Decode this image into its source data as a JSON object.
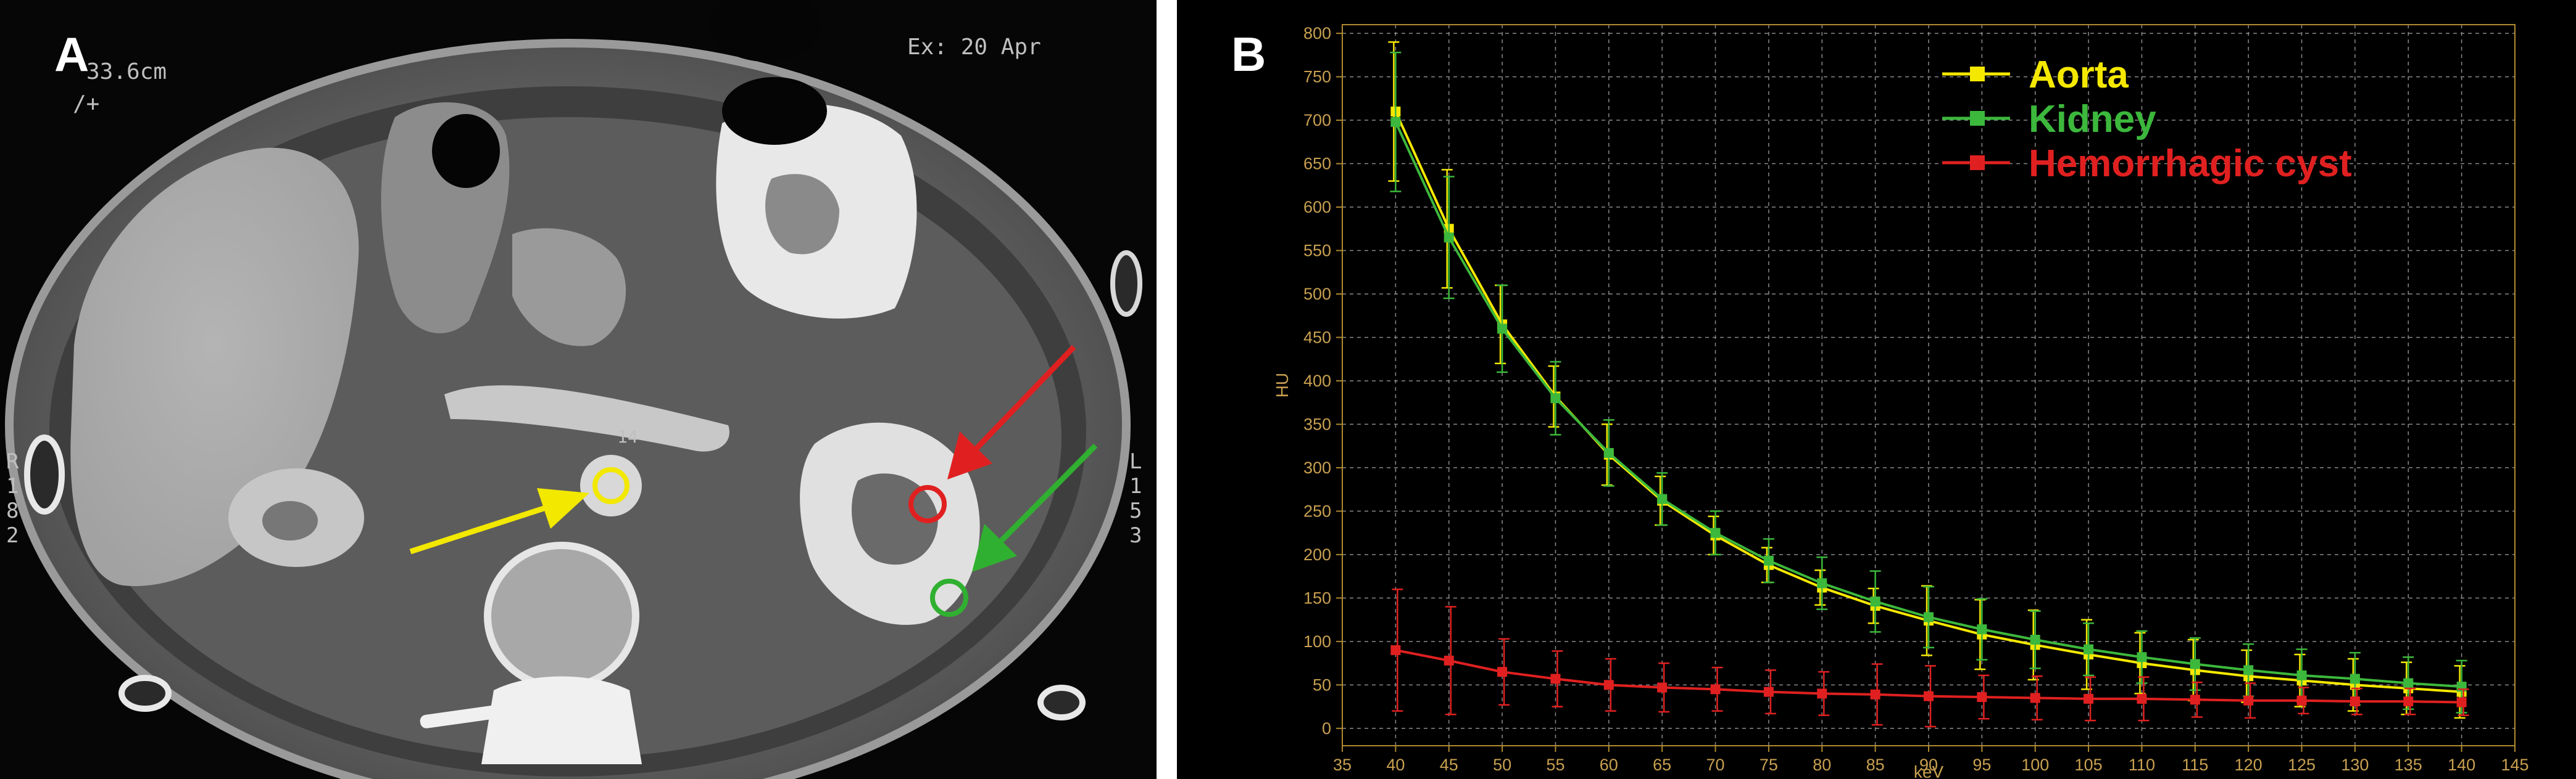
{
  "panel_a": {
    "label": "A",
    "top_left_lines": [
      "33.6cm",
      "/+"
    ],
    "top_right": "Ex: 20 Apr",
    "left_side_chars": [
      "R",
      "1",
      "8",
      "2"
    ],
    "right_side_chars": [
      "L",
      "1",
      "5",
      "3"
    ],
    "small_label": "14",
    "markers": [
      {
        "name": "aorta",
        "color": "#f2e800"
      },
      {
        "name": "hemorrhagic-cyst",
        "color": "#e02020"
      },
      {
        "name": "kidney",
        "color": "#30b030"
      }
    ]
  },
  "panel_b": {
    "label": "B"
  },
  "chart_data": {
    "type": "line",
    "xlabel": "keV",
    "ylabel": "HU",
    "xlim": [
      35,
      145
    ],
    "ylim": [
      -20,
      810
    ],
    "xticks": [
      35,
      40,
      45,
      50,
      55,
      60,
      65,
      70,
      75,
      80,
      85,
      90,
      95,
      100,
      105,
      110,
      115,
      120,
      125,
      130,
      135,
      140,
      145
    ],
    "yticks": [
      0,
      50,
      100,
      150,
      200,
      250,
      300,
      350,
      400,
      450,
      500,
      550,
      600,
      650,
      700,
      750,
      800
    ],
    "grid": true,
    "legend_position": "top-right",
    "x": [
      40,
      45,
      50,
      55,
      60,
      65,
      70,
      75,
      80,
      85,
      90,
      95,
      100,
      105,
      110,
      115,
      120,
      125,
      130,
      135,
      140
    ],
    "series": [
      {
        "name": "Aorta",
        "color": "#f5e800",
        "values": [
          710,
          575,
          465,
          382,
          315,
          262,
          222,
          188,
          162,
          141,
          124,
          108,
          96,
          85,
          75,
          67,
          60,
          55,
          50,
          46,
          42
        ],
        "errors": [
          80,
          68,
          45,
          35,
          35,
          28,
          22,
          20,
          20,
          20,
          40,
          40,
          40,
          40,
          35,
          35,
          30,
          30,
          30,
          30,
          30
        ]
      },
      {
        "name": "Kidney",
        "color": "#3cb83c",
        "values": [
          698,
          565,
          460,
          380,
          317,
          264,
          225,
          193,
          167,
          146,
          128,
          114,
          102,
          91,
          82,
          74,
          67,
          61,
          57,
          52,
          48
        ],
        "errors": [
          80,
          70,
          50,
          42,
          38,
          30,
          25,
          25,
          30,
          35,
          35,
          35,
          33,
          30,
          30,
          30,
          30,
          30,
          30,
          30,
          30
        ]
      },
      {
        "name": "Hemorrhagic cyst",
        "color": "#e02020",
        "values": [
          90,
          78,
          65,
          57,
          50,
          47,
          45,
          42,
          40,
          39,
          37,
          36,
          35,
          34,
          34,
          33,
          32,
          32,
          31,
          31,
          30
        ],
        "errors": [
          70,
          62,
          38,
          32,
          30,
          28,
          25,
          25,
          25,
          35,
          35,
          25,
          25,
          25,
          25,
          20,
          20,
          15,
          15,
          15,
          15
        ]
      }
    ]
  }
}
